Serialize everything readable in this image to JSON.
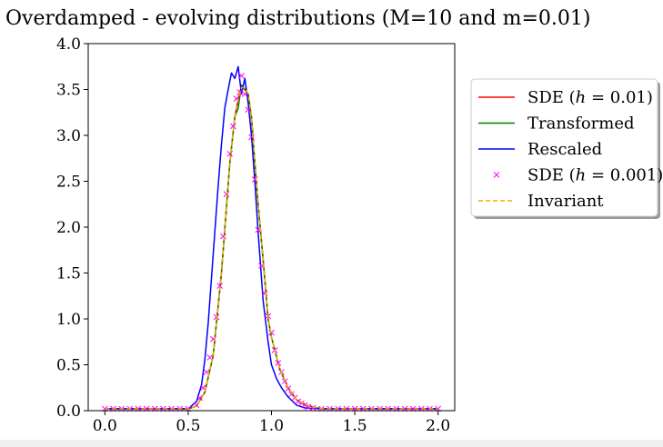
{
  "chart_data": {
    "type": "line",
    "title": "Overdamped - evolving distributions (M=10 and m=0.01)",
    "xlabel": "",
    "ylabel": "",
    "xlim": [
      -0.1,
      2.1
    ],
    "ylim": [
      0.0,
      4.0
    ],
    "xticks": [
      0.0,
      0.5,
      1.0,
      1.5,
      2.0
    ],
    "xtick_labels": [
      "0.0",
      "0.5",
      "1.0",
      "1.5",
      "2.0"
    ],
    "yticks": [
      0.0,
      0.5,
      1.0,
      1.5,
      2.0,
      2.5,
      3.0,
      3.5,
      4.0
    ],
    "ytick_labels": [
      "0.0",
      "0.5",
      "1.0",
      "1.5",
      "2.0",
      "2.5",
      "3.0",
      "3.5",
      "4.0"
    ],
    "grid": false,
    "legend_position": "outside-right",
    "series": [
      {
        "name": "SDE (h = 0.01)",
        "color": "#ff0000",
        "style": "solid",
        "x": [
          0.0,
          0.5,
          0.55,
          0.6,
          0.65,
          0.7,
          0.72,
          0.75,
          0.78,
          0.8,
          0.82,
          0.84,
          0.86,
          0.88,
          0.9,
          0.92,
          0.95,
          0.98,
          1.0,
          1.05,
          1.1,
          1.15,
          1.2,
          1.25,
          1.3,
          1.4,
          2.0
        ],
        "y": [
          0.02,
          0.02,
          0.05,
          0.2,
          0.6,
          1.5,
          1.98,
          2.7,
          3.2,
          3.4,
          3.54,
          3.5,
          3.45,
          3.2,
          2.7,
          2.25,
          1.65,
          1.0,
          0.8,
          0.45,
          0.25,
          0.12,
          0.07,
          0.04,
          0.02,
          0.02,
          0.02
        ]
      },
      {
        "name": "Transformed",
        "color": "#008000",
        "style": "solid",
        "x": [
          0.0,
          0.5,
          0.55,
          0.6,
          0.65,
          0.7,
          0.72,
          0.75,
          0.78,
          0.8,
          0.82,
          0.84,
          0.86,
          0.88,
          0.9,
          0.92,
          0.95,
          0.98,
          1.0,
          1.05,
          1.1,
          1.15,
          1.2,
          1.25,
          1.3,
          1.4,
          2.0
        ],
        "y": [
          0.02,
          0.02,
          0.05,
          0.2,
          0.6,
          1.5,
          1.98,
          2.7,
          3.2,
          3.3,
          3.55,
          3.5,
          3.45,
          3.2,
          2.7,
          2.25,
          1.65,
          1.0,
          0.8,
          0.45,
          0.25,
          0.12,
          0.07,
          0.04,
          0.02,
          0.02,
          0.02
        ]
      },
      {
        "name": "Rescaled",
        "color": "#0000ff",
        "style": "solid",
        "x": [
          0.0,
          0.5,
          0.55,
          0.58,
          0.6,
          0.62,
          0.65,
          0.68,
          0.7,
          0.72,
          0.74,
          0.76,
          0.78,
          0.8,
          0.82,
          0.84,
          0.86,
          0.88,
          0.9,
          0.92,
          0.95,
          0.98,
          1.0,
          1.03,
          1.06,
          1.1,
          1.15,
          1.2,
          1.3,
          2.0
        ],
        "y": [
          0.02,
          0.02,
          0.1,
          0.28,
          0.55,
          0.95,
          1.7,
          2.45,
          2.9,
          3.3,
          3.5,
          3.68,
          3.62,
          3.75,
          3.45,
          3.62,
          3.35,
          3.0,
          2.5,
          1.95,
          1.2,
          0.75,
          0.5,
          0.35,
          0.25,
          0.15,
          0.06,
          0.03,
          0.02,
          0.02
        ]
      },
      {
        "name": "SDE (h = 0.001)",
        "color": "#ff00ff",
        "style": "markers-x",
        "x": [
          0.0,
          0.05,
          0.1,
          0.15,
          0.2,
          0.25,
          0.3,
          0.35,
          0.4,
          0.45,
          0.5,
          0.55,
          0.57,
          0.59,
          0.61,
          0.63,
          0.65,
          0.67,
          0.69,
          0.71,
          0.73,
          0.75,
          0.77,
          0.79,
          0.81,
          0.82,
          0.84,
          0.86,
          0.88,
          0.9,
          0.92,
          0.94,
          0.96,
          0.98,
          1.0,
          1.02,
          1.04,
          1.06,
          1.08,
          1.1,
          1.12,
          1.14,
          1.16,
          1.18,
          1.2,
          1.22,
          1.25,
          1.3,
          1.35,
          1.4,
          1.45,
          1.5,
          1.55,
          1.6,
          1.65,
          1.7,
          1.75,
          1.8,
          1.85,
          1.9,
          1.95,
          2.0
        ],
        "y": [
          0.02,
          0.02,
          0.02,
          0.02,
          0.02,
          0.02,
          0.02,
          0.02,
          0.02,
          0.02,
          0.02,
          0.06,
          0.14,
          0.25,
          0.42,
          0.58,
          0.78,
          1.02,
          1.36,
          1.9,
          2.36,
          2.8,
          3.1,
          3.4,
          3.47,
          3.65,
          3.45,
          3.28,
          2.98,
          2.52,
          1.97,
          1.58,
          1.28,
          1.03,
          0.85,
          0.66,
          0.52,
          0.42,
          0.32,
          0.24,
          0.18,
          0.14,
          0.1,
          0.08,
          0.06,
          0.04,
          0.03,
          0.02,
          0.02,
          0.02,
          0.02,
          0.02,
          0.02,
          0.02,
          0.02,
          0.02,
          0.02,
          0.02,
          0.02,
          0.02,
          0.02,
          0.02
        ]
      },
      {
        "name": "Invariant",
        "color": "#ffa500",
        "style": "dashed",
        "x": [
          0.0,
          0.5,
          0.55,
          0.6,
          0.65,
          0.7,
          0.72,
          0.75,
          0.78,
          0.8,
          0.82,
          0.84,
          0.86,
          0.88,
          0.9,
          0.92,
          0.95,
          0.98,
          1.0,
          1.05,
          1.1,
          1.15,
          1.2,
          1.25,
          1.3,
          1.4,
          2.0
        ],
        "y": [
          0.02,
          0.02,
          0.05,
          0.2,
          0.6,
          1.5,
          1.98,
          2.7,
          3.2,
          3.4,
          3.52,
          3.52,
          3.45,
          3.2,
          2.7,
          2.25,
          1.65,
          1.0,
          0.8,
          0.45,
          0.25,
          0.12,
          0.07,
          0.04,
          0.02,
          0.02,
          0.02
        ]
      }
    ],
    "legend": [
      {
        "prefix": "SDE (",
        "math_var": "h",
        "suffix": " = 0.01)",
        "color": "#ff0000",
        "marker": "line"
      },
      {
        "prefix": "Transformed",
        "math_var": "",
        "suffix": "",
        "color": "#008000",
        "marker": "line"
      },
      {
        "prefix": "Rescaled",
        "math_var": "",
        "suffix": "",
        "color": "#0000ff",
        "marker": "line"
      },
      {
        "prefix": "SDE (",
        "math_var": "h",
        "suffix": " = 0.001)",
        "color": "#ff00ff",
        "marker": "x"
      },
      {
        "prefix": "Invariant",
        "math_var": "",
        "suffix": "",
        "color": "#ffa500",
        "marker": "dashed"
      }
    ]
  }
}
